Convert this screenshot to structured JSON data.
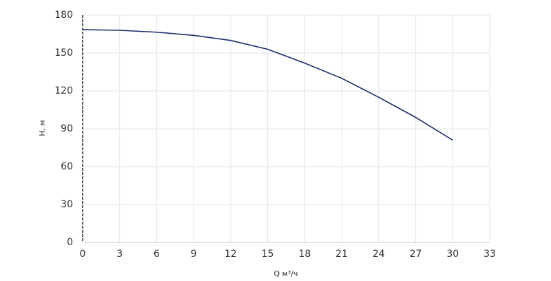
{
  "chart_data": {
    "type": "line",
    "xlabel": "Q м³/ч",
    "ylabel": "H, м",
    "x": [
      0,
      3,
      6,
      9,
      12,
      15,
      18,
      21,
      24,
      27,
      30
    ],
    "series": [
      {
        "color": "#1b2a6b",
        "values": [
          168.5,
          168,
          166.5,
          164,
          160,
          153,
          142,
          130,
          115,
          99,
          81
        ]
      }
    ],
    "xlim": [
      0,
      33
    ],
    "xticks": [
      0,
      3,
      6,
      9,
      12,
      15,
      18,
      21,
      24,
      27,
      30,
      33
    ],
    "ylim": [
      0,
      180
    ],
    "yticks": [
      0,
      30,
      60,
      90,
      120,
      150,
      180
    ],
    "grid": true
  }
}
